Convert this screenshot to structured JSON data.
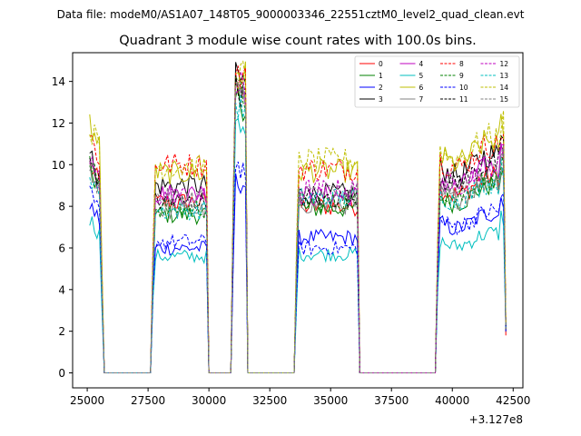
{
  "chart_data": {
    "type": "line",
    "suptitle": "Data file: modeM0/AS1A07_148T05_9000003346_22551cztM0_level2_quad_clean.evt",
    "title": "Quadrant 3 module wise count rates with 100.0s bins.",
    "xlabel": "",
    "ylabel": "",
    "x_offset_label": "+3.127e8",
    "xlim": [
      24400,
      42900
    ],
    "ylim": [
      -0.72,
      15.38
    ],
    "x_ticks": [
      25000,
      27500,
      30000,
      32500,
      35000,
      37500,
      40000,
      42500
    ],
    "x_tick_labels": [
      "25000",
      "27500",
      "30000",
      "32500",
      "35000",
      "37500",
      "40000",
      "42500"
    ],
    "y_ticks": [
      0,
      2,
      4,
      6,
      8,
      10,
      12,
      14
    ],
    "y_tick_labels": [
      "0",
      "2",
      "4",
      "6",
      "8",
      "10",
      "12",
      "14"
    ],
    "legend_position": "top-right",
    "legend_columns": 4,
    "active_segments": [
      [
        25100,
        25600
      ],
      [
        27700,
        29900
      ],
      [
        31000,
        31500
      ],
      [
        33600,
        36100
      ],
      [
        39400,
        42200
      ]
    ],
    "x_range": [
      25100,
      42200
    ],
    "series": [
      {
        "name": "0",
        "color": "#ff0000",
        "dash": "solid",
        "levels": [
          10.0,
          8.2,
          13.5,
          8.0,
          9.0
        ],
        "spike": 14.0,
        "start": 10.0
      },
      {
        "name": "1",
        "color": "#008000",
        "dash": "solid",
        "levels": [
          9.6,
          7.6,
          12.6,
          7.9,
          8.6
        ],
        "spike": 13.2,
        "start": 9.6
      },
      {
        "name": "2",
        "color": "#0000ff",
        "dash": "solid",
        "levels": [
          7.8,
          6.0,
          9.0,
          6.5,
          7.3
        ],
        "spike": 9.2,
        "start": 8.1
      },
      {
        "name": "3",
        "color": "#000000",
        "dash": "solid",
        "levels": [
          10.2,
          9.0,
          13.8,
          8.6,
          10.0
        ],
        "spike": 14.2,
        "start": 10.4
      },
      {
        "name": "4",
        "color": "#bf00bf",
        "dash": "solid",
        "levels": [
          9.9,
          8.6,
          13.4,
          8.5,
          9.4
        ],
        "spike": 13.8,
        "start": 10.1
      },
      {
        "name": "5",
        "color": "#00bfbf",
        "dash": "solid",
        "levels": [
          7.2,
          5.6,
          11.2,
          5.7,
          6.4
        ],
        "spike": 11.8,
        "start": 7.4
      },
      {
        "name": "6",
        "color": "#bfbf00",
        "dash": "solid",
        "levels": [
          11.7,
          9.6,
          14.1,
          9.7,
          10.6
        ],
        "spike": 14.6,
        "start": 12.0
      },
      {
        "name": "7",
        "color": "#808080",
        "dash": "solid",
        "levels": [
          9.8,
          7.8,
          13.0,
          8.1,
          8.8
        ],
        "spike": 13.5,
        "start": 9.9
      },
      {
        "name": "8",
        "color": "#ff0000",
        "dash": "dashed",
        "levels": [
          11.1,
          10.0,
          13.9,
          9.8,
          10.4
        ],
        "spike": 14.3,
        "start": 11.4
      },
      {
        "name": "9",
        "color": "#008000",
        "dash": "dashed",
        "levels": [
          9.8,
          7.9,
          13.0,
          8.2,
          8.9
        ],
        "spike": 13.6,
        "start": 10.0
      },
      {
        "name": "10",
        "color": "#0000ff",
        "dash": "dashed",
        "levels": [
          8.2,
          6.3,
          9.6,
          6.0,
          7.4
        ],
        "spike": 10.0,
        "start": 8.5
      },
      {
        "name": "11",
        "color": "#000000",
        "dash": "dashed",
        "levels": [
          10.0,
          8.2,
          13.1,
          8.4,
          9.6
        ],
        "spike": 13.7,
        "start": 10.2
      },
      {
        "name": "12",
        "color": "#bf00bf",
        "dash": "dashed",
        "levels": [
          10.1,
          8.5,
          13.3,
          8.8,
          9.5
        ],
        "spike": 13.9,
        "start": 10.3
      },
      {
        "name": "13",
        "color": "#00bfbf",
        "dash": "dashed",
        "levels": [
          9.4,
          7.8,
          12.4,
          8.4,
          8.7
        ],
        "spike": 12.9,
        "start": 9.6
      },
      {
        "name": "14",
        "color": "#bfbf00",
        "dash": "dashed",
        "levels": [
          11.6,
          9.9,
          14.0,
          10.2,
          10.8
        ],
        "spike": 14.5,
        "start": 11.9
      },
      {
        "name": "15",
        "color": "#808080",
        "dash": "dashed",
        "levels": [
          9.7,
          8.4,
          12.9,
          8.7,
          9.2
        ],
        "spike": 13.4,
        "start": 9.8
      }
    ],
    "end_values": [
      1.8,
      2.3,
      2.1,
      2.0,
      2.2,
      2.1,
      2.4,
      2.0,
      2.5,
      2.2,
      2.0,
      2.1,
      2.3,
      2.2,
      2.4,
      2.1
    ]
  }
}
